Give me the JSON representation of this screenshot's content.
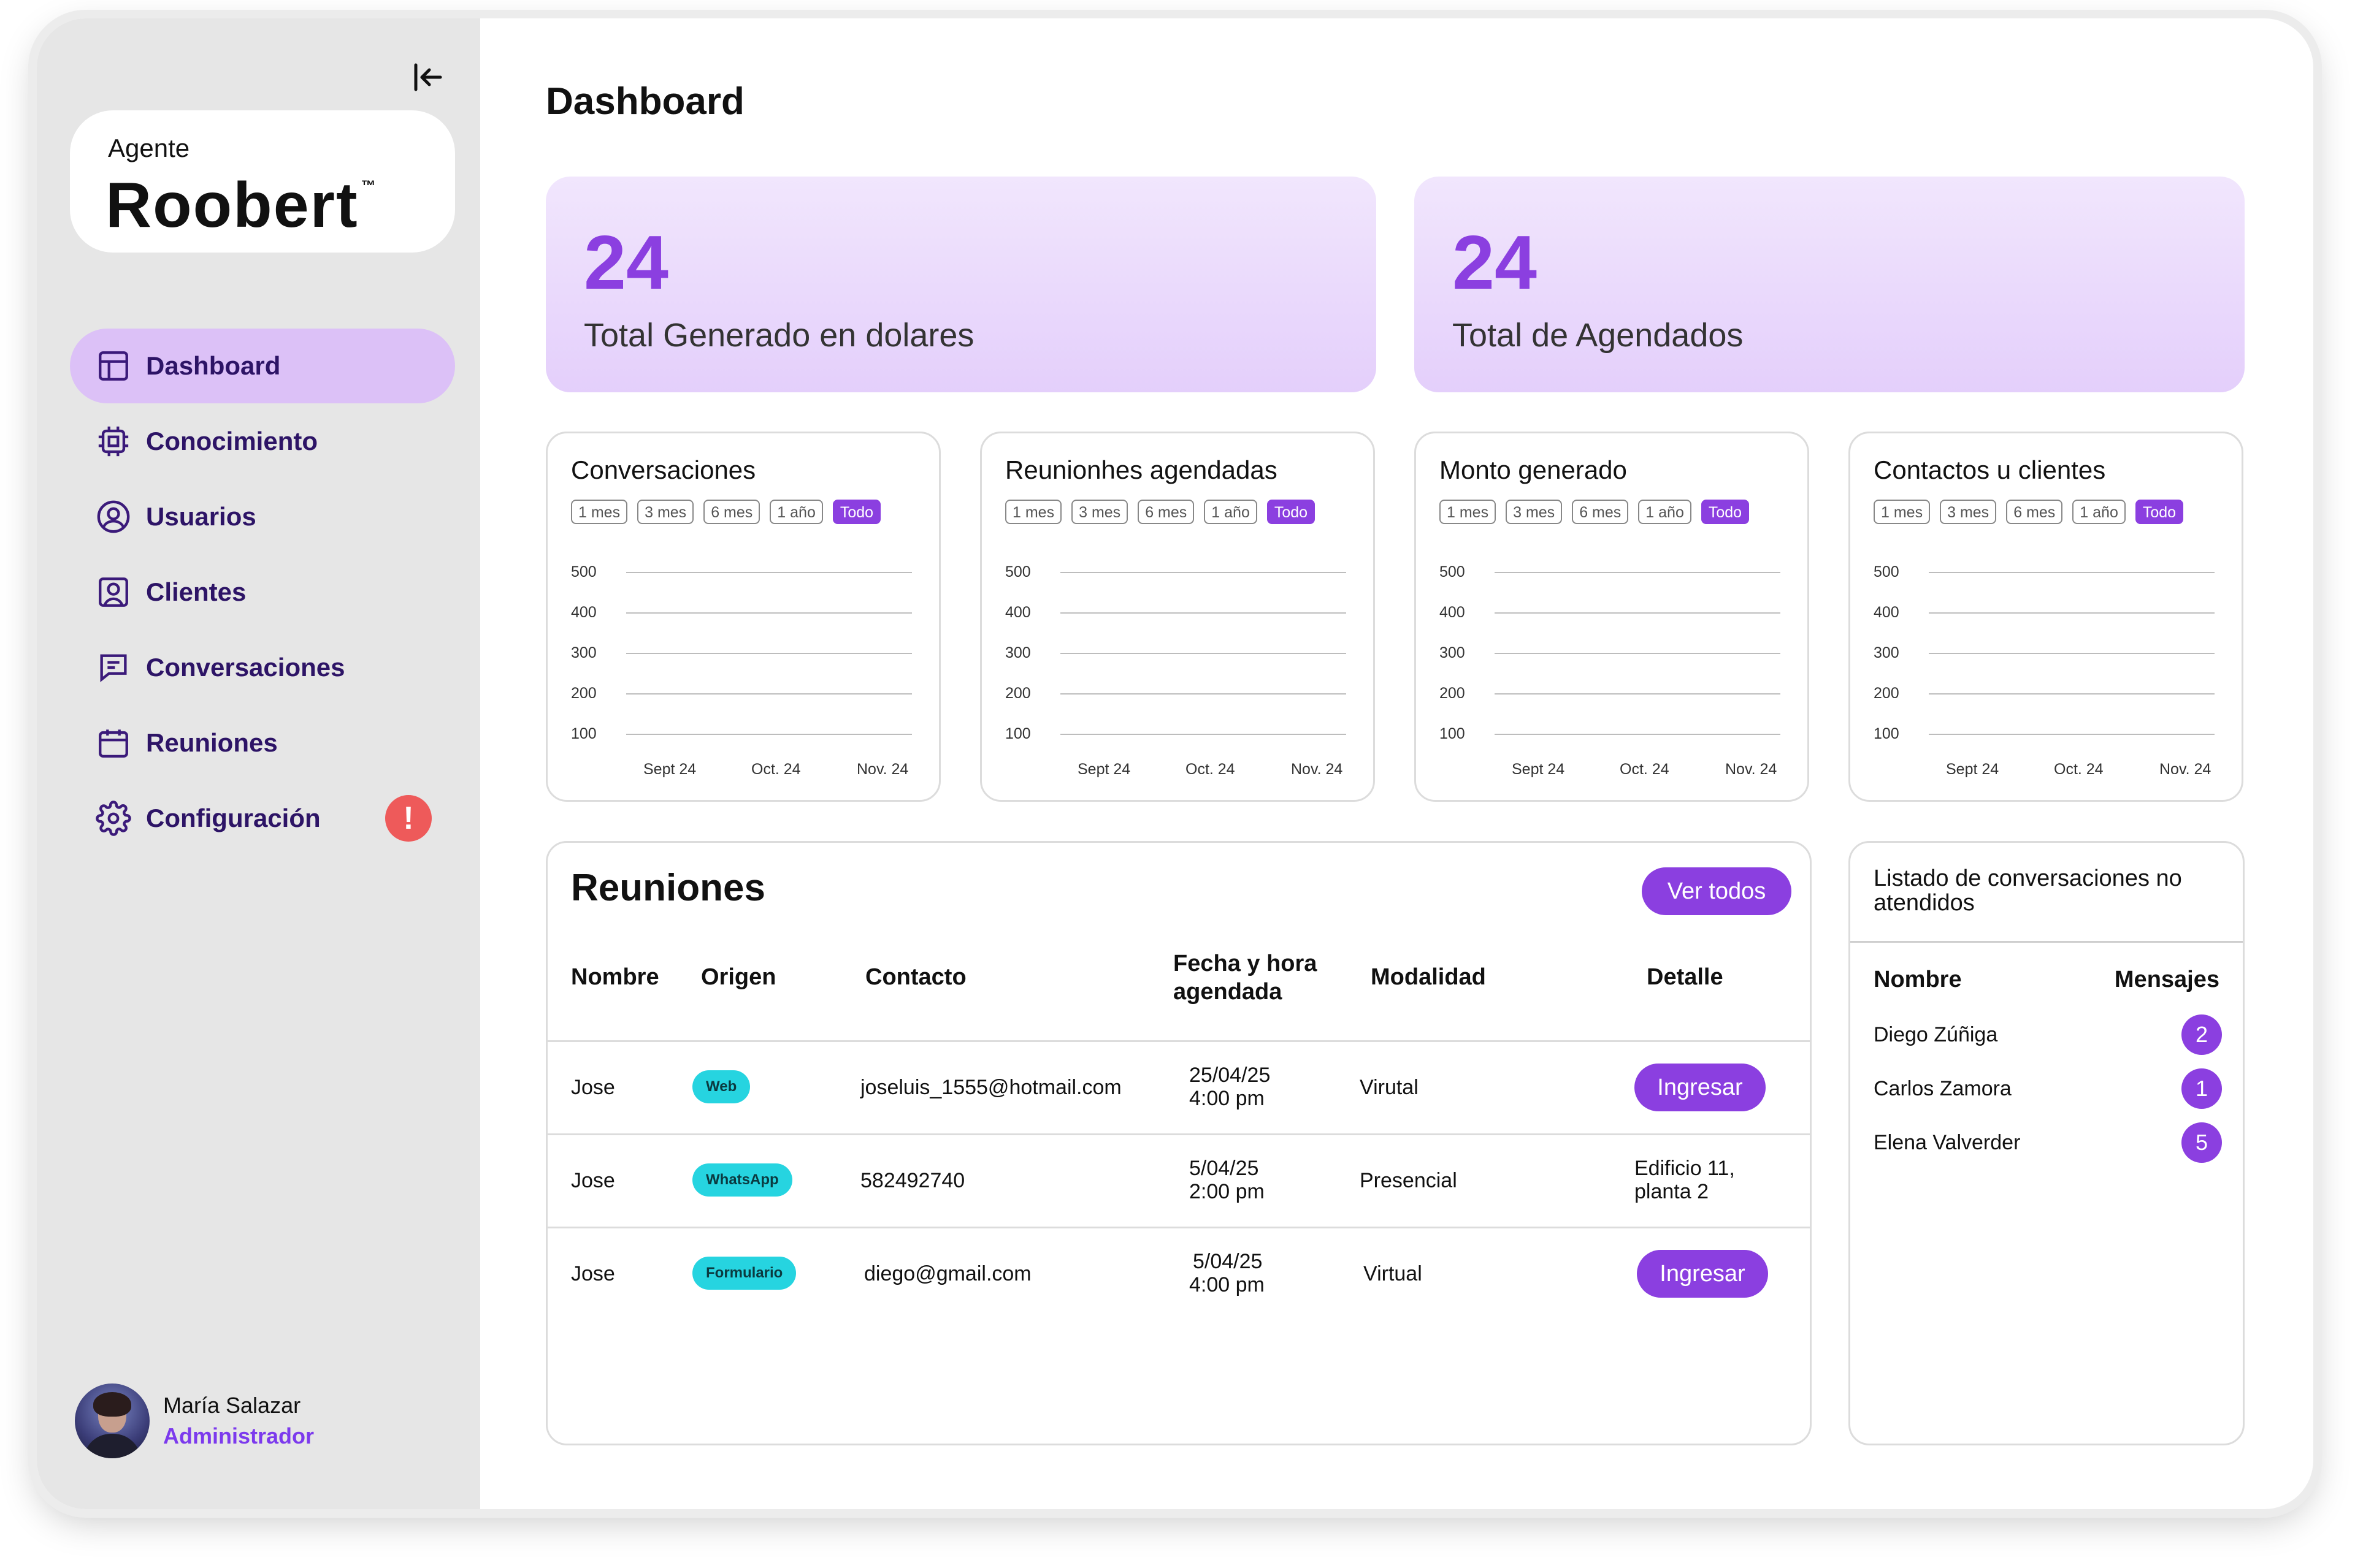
{
  "sidebar": {
    "logo_small": "Agente",
    "logo_big": "Roobert",
    "logo_tm": "™",
    "nav": [
      {
        "label": "Dashboard",
        "icon": "layout-icon",
        "active": true
      },
      {
        "label": "Conocimiento",
        "icon": "chip-icon"
      },
      {
        "label": "Usuarios",
        "icon": "user-circle-icon"
      },
      {
        "label": "Clientes",
        "icon": "contact-card-icon"
      },
      {
        "label": "Conversaciones",
        "icon": "chat-icon"
      },
      {
        "label": "Reuniones",
        "icon": "calendar-icon"
      },
      {
        "label": "Configuración",
        "icon": "gear-icon",
        "badge": "!"
      }
    ],
    "user": {
      "name": "María Salazar",
      "role": "Administrador"
    }
  },
  "header": {
    "title": "Dashboard"
  },
  "stats": [
    {
      "value": "24",
      "label": "Total Generado en dolares"
    },
    {
      "value": "24",
      "label": "Total de Agendados"
    }
  ],
  "chart_data": [
    {
      "type": "line",
      "title": "Conversaciones",
      "y_ticks": [
        "500",
        "400",
        "300",
        "200",
        "100"
      ],
      "categories": [
        "Sept 24",
        "Oct. 24",
        "Nov. 24"
      ],
      "series": [],
      "ranges": [
        "1 mes",
        "3 mes",
        "6 mes",
        "1 año",
        "Todo"
      ],
      "active_range": "Todo",
      "grid": true
    },
    {
      "type": "line",
      "title": "Reunionhes agendadas",
      "y_ticks": [
        "500",
        "400",
        "300",
        "200",
        "100"
      ],
      "categories": [
        "Sept 24",
        "Oct. 24",
        "Nov. 24"
      ],
      "series": [],
      "ranges": [
        "1 mes",
        "3 mes",
        "6 mes",
        "1 año",
        "Todo"
      ],
      "active_range": "Todo",
      "grid": true
    },
    {
      "type": "line",
      "title": "Monto generado",
      "y_ticks": [
        "500",
        "400",
        "300",
        "200",
        "100"
      ],
      "categories": [
        "Sept 24",
        "Oct. 24",
        "Nov. 24"
      ],
      "series": [],
      "ranges": [
        "1 mes",
        "3 mes",
        "6 mes",
        "1 año",
        "Todo"
      ],
      "active_range": "Todo",
      "grid": true
    },
    {
      "type": "line",
      "title": "Contactos u clientes",
      "y_ticks": [
        "500",
        "400",
        "300",
        "200",
        "100"
      ],
      "categories": [
        "Sept 24",
        "Oct. 24",
        "Nov. 24"
      ],
      "series": [],
      "ranges": [
        "1 mes",
        "3 mes",
        "6 mes",
        "1 año",
        "Todo"
      ],
      "active_range": "Todo",
      "grid": true
    }
  ],
  "meetings": {
    "title": "Reuniones",
    "view_all": "Ver todos",
    "columns": [
      "Nombre",
      "Origen",
      "Contacto",
      "Fecha y hora agendada",
      "Modalidad",
      "Detalle"
    ],
    "rows": [
      {
        "name": "Jose",
        "origin": "Web",
        "contact": "joseluis_1555@hotmail.com",
        "date": "25/04/25",
        "time": "4:00 pm",
        "mode": "Virutal",
        "detail": "Ingresar",
        "detail_is_button": true
      },
      {
        "name": "Jose",
        "origin": "WhatsApp",
        "contact": "582492740",
        "date": "5/04/25",
        "time": "2:00 pm",
        "mode": "Presencial",
        "detail": "Edificio 11,",
        "detail2": "planta 2",
        "detail_is_button": false
      },
      {
        "name": "Jose",
        "origin": "Formulario",
        "contact": "diego@gmail.com",
        "date": "5/04/25",
        "time": "4:00 pm",
        "mode": "Virtual",
        "detail": "Ingresar",
        "detail_is_button": true
      }
    ]
  },
  "unattended": {
    "title": "Listado de conversaciones no atendidos",
    "col_name": "Nombre",
    "col_messages": "Mensajes",
    "items": [
      {
        "name": "Diego Zúñiga",
        "count": "2"
      },
      {
        "name": "Carlos Zamora",
        "count": "1"
      },
      {
        "name": "Elena Valverder",
        "count": "5"
      }
    ]
  },
  "colors": {
    "accent": "#8b3fe0",
    "tag": "#26d4e0",
    "alert": "#ee5a5a",
    "nav_active": "#dcc1f7"
  }
}
